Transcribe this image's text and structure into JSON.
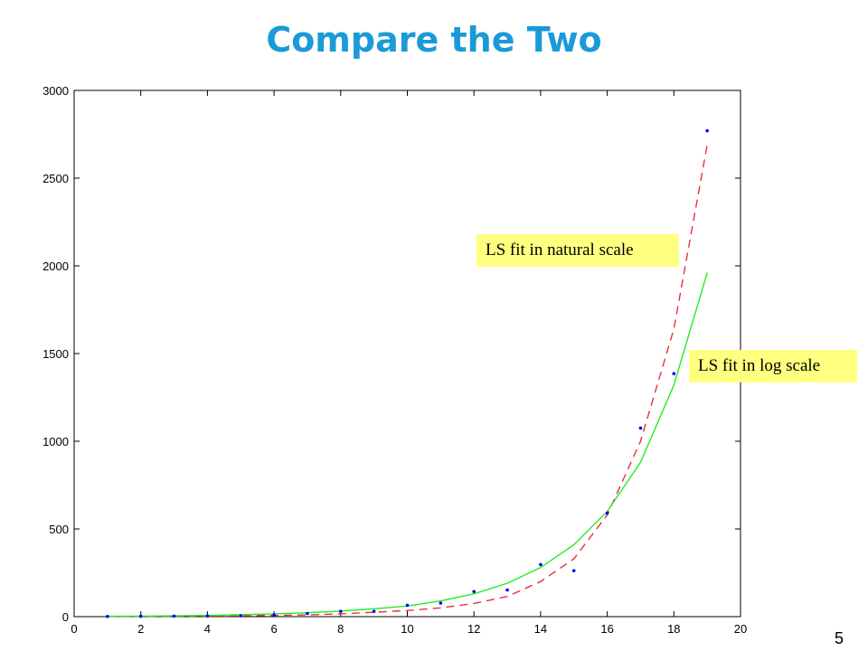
{
  "slide": {
    "title": "Compare the Two",
    "page_number": "5",
    "title_color": "#1a9ad8"
  },
  "annotations": {
    "natural_label": "LS fit in natural scale",
    "log_label": "LS fit in log scale",
    "background_color": "#ffff80"
  },
  "chart_data": {
    "type": "scatter",
    "title": "",
    "xlabel": "",
    "ylabel": "",
    "xlim": [
      0,
      20
    ],
    "ylim": [
      0,
      3000
    ],
    "xticks": [
      0,
      2,
      4,
      6,
      8,
      10,
      12,
      14,
      16,
      18,
      20
    ],
    "yticks": [
      0,
      500,
      1000,
      1500,
      2000,
      2500,
      3000
    ],
    "grid": false,
    "legend": "none",
    "x": [
      1,
      2,
      3,
      4,
      5,
      6,
      7,
      8,
      9,
      10,
      11,
      12,
      13,
      14,
      15,
      16,
      17,
      18,
      19
    ],
    "series": [
      {
        "kind": "points",
        "color": "#0000ff",
        "values": [
          1,
          2,
          3,
          4,
          5,
          10,
          18,
          30,
          30,
          65,
          77,
          143,
          152,
          297,
          262,
          590,
          1075,
          1385,
          2770
        ]
      },
      {
        "kind": "line",
        "style": "dashed",
        "color": "#e8303a",
        "values": [
          1,
          1,
          2,
          3,
          5,
          7,
          10,
          16,
          25,
          35,
          50,
          75,
          115,
          200,
          330,
          580,
          1000,
          1640,
          2690
        ]
      },
      {
        "kind": "line",
        "style": "solid",
        "color": "#22ee22",
        "values": [
          2,
          3,
          5,
          7,
          11,
          16,
          22,
          32,
          45,
          60,
          90,
          130,
          190,
          280,
          410,
          600,
          880,
          1320,
          1960
        ]
      }
    ]
  }
}
